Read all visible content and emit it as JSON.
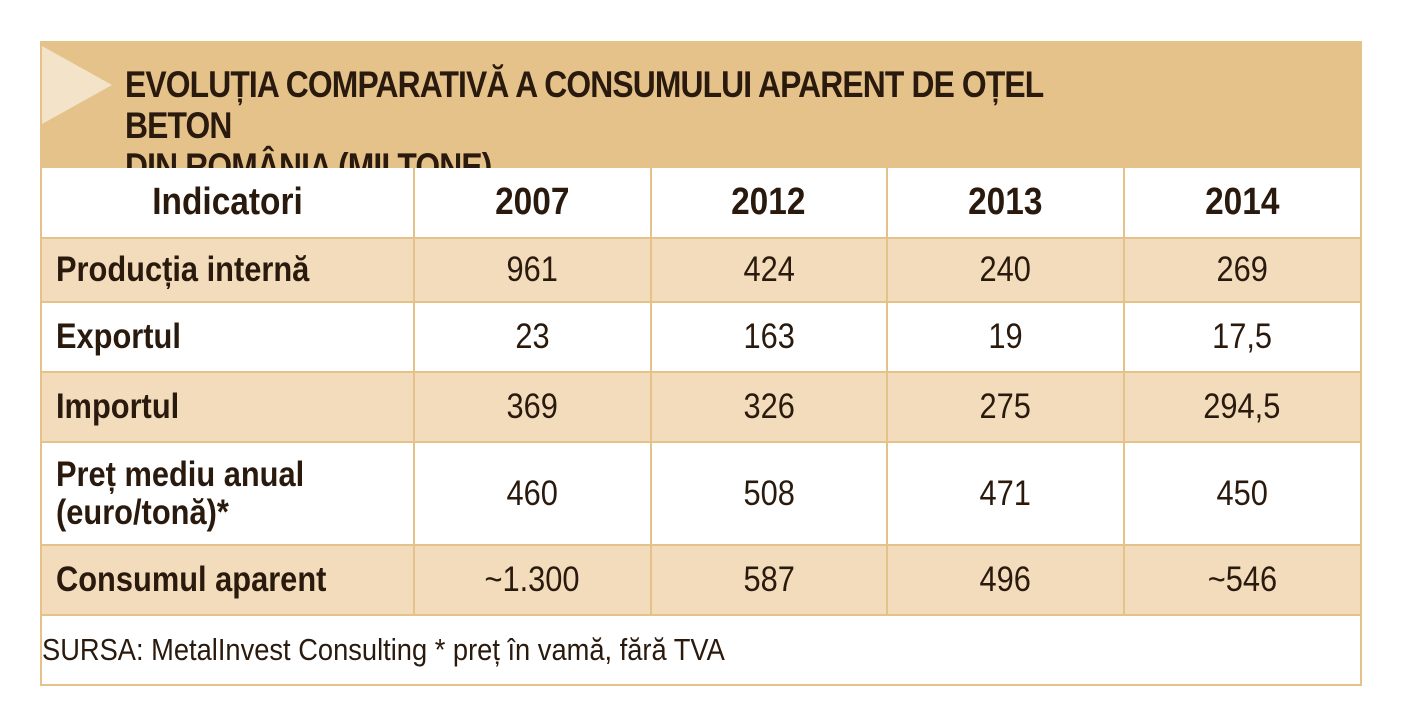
{
  "title": "EVOLUȚIA COMPARATIVĂ A CONSUMULUI APARENT DE OȚEL BETON\nDIN ROMÂNIA (MII TONE)",
  "table": {
    "headers": [
      "Indicatori",
      "2007",
      "2012",
      "2013",
      "2014"
    ],
    "rows": [
      {
        "label": "Producția internă",
        "values": [
          "961",
          "424",
          "240",
          "269"
        ]
      },
      {
        "label": "Exportul",
        "values": [
          "23",
          "163",
          "19",
          "17,5"
        ]
      },
      {
        "label": "Importul",
        "values": [
          "369",
          "326",
          "275",
          "294,5"
        ]
      },
      {
        "label": "Preț mediu anual\n(euro/tonă)*",
        "values": [
          "460",
          "508",
          "471",
          "450"
        ]
      },
      {
        "label": "Consumul aparent",
        "values": [
          "~1.300",
          "587",
          "496",
          "~546"
        ]
      }
    ]
  },
  "source": "SURSA: MetalInvest Consulting * preț în vamă, fără TVA",
  "colors": {
    "band": "#e4c28a",
    "row_shade": "#f2dcbc",
    "arrow": "#f3e4c9",
    "text": "#2a1a0e"
  },
  "icons": {
    "title_marker": "play-triangle-icon"
  }
}
